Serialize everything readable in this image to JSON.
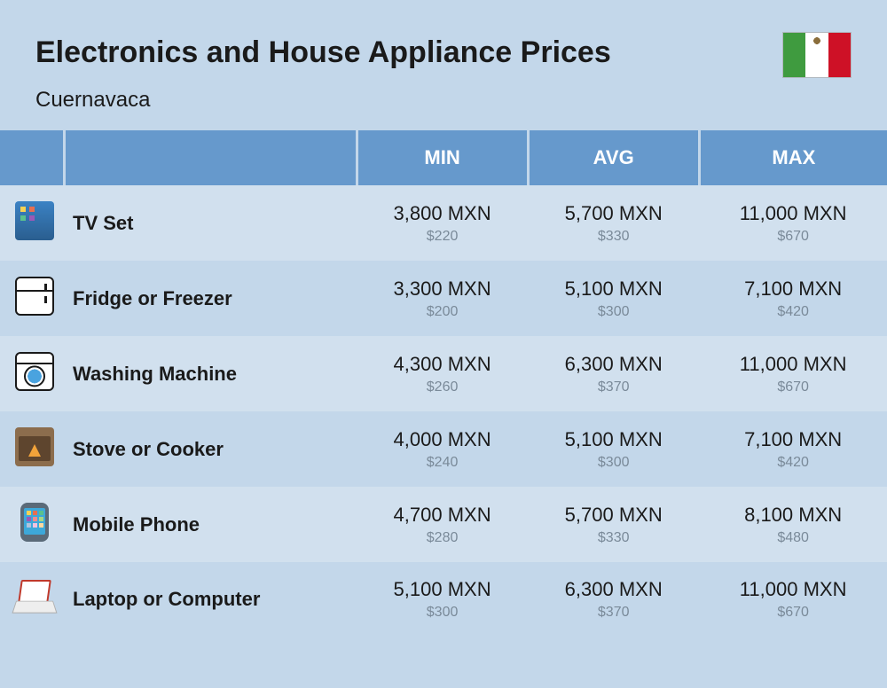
{
  "header": {
    "title": "Electronics and House Appliance Prices",
    "subtitle": "Cuernavaca",
    "flag": {
      "left": "#3f9b3f",
      "center": "#ffffff",
      "right": "#ce1126"
    }
  },
  "table": {
    "columns": {
      "min": "MIN",
      "avg": "AVG",
      "max": "MAX"
    },
    "header_bg": "#6699cc",
    "header_text_color": "#ffffff",
    "row_odd_bg": "#d1e0ee",
    "row_even_bg": "#c3d7ea",
    "price_main_color": "#1a1a1a",
    "price_sub_color": "#7a8a99",
    "rows": [
      {
        "icon": "tv-icon",
        "name": "TV Set",
        "min": {
          "main": "3,800 MXN",
          "sub": "$220"
        },
        "avg": {
          "main": "5,700 MXN",
          "sub": "$330"
        },
        "max": {
          "main": "11,000 MXN",
          "sub": "$670"
        }
      },
      {
        "icon": "fridge-icon",
        "name": "Fridge or Freezer",
        "min": {
          "main": "3,300 MXN",
          "sub": "$200"
        },
        "avg": {
          "main": "5,100 MXN",
          "sub": "$300"
        },
        "max": {
          "main": "7,100 MXN",
          "sub": "$420"
        }
      },
      {
        "icon": "washing-machine-icon",
        "name": "Washing Machine",
        "min": {
          "main": "4,300 MXN",
          "sub": "$260"
        },
        "avg": {
          "main": "6,300 MXN",
          "sub": "$370"
        },
        "max": {
          "main": "11,000 MXN",
          "sub": "$670"
        }
      },
      {
        "icon": "stove-icon",
        "name": "Stove or Cooker",
        "min": {
          "main": "4,000 MXN",
          "sub": "$240"
        },
        "avg": {
          "main": "5,100 MXN",
          "sub": "$300"
        },
        "max": {
          "main": "7,100 MXN",
          "sub": "$420"
        }
      },
      {
        "icon": "mobile-phone-icon",
        "name": "Mobile Phone",
        "min": {
          "main": "4,700 MXN",
          "sub": "$280"
        },
        "avg": {
          "main": "5,700 MXN",
          "sub": "$330"
        },
        "max": {
          "main": "8,100 MXN",
          "sub": "$480"
        }
      },
      {
        "icon": "laptop-icon",
        "name": "Laptop or Computer",
        "min": {
          "main": "5,100 MXN",
          "sub": "$300"
        },
        "avg": {
          "main": "6,300 MXN",
          "sub": "$370"
        },
        "max": {
          "main": "11,000 MXN",
          "sub": "$670"
        }
      }
    ]
  }
}
